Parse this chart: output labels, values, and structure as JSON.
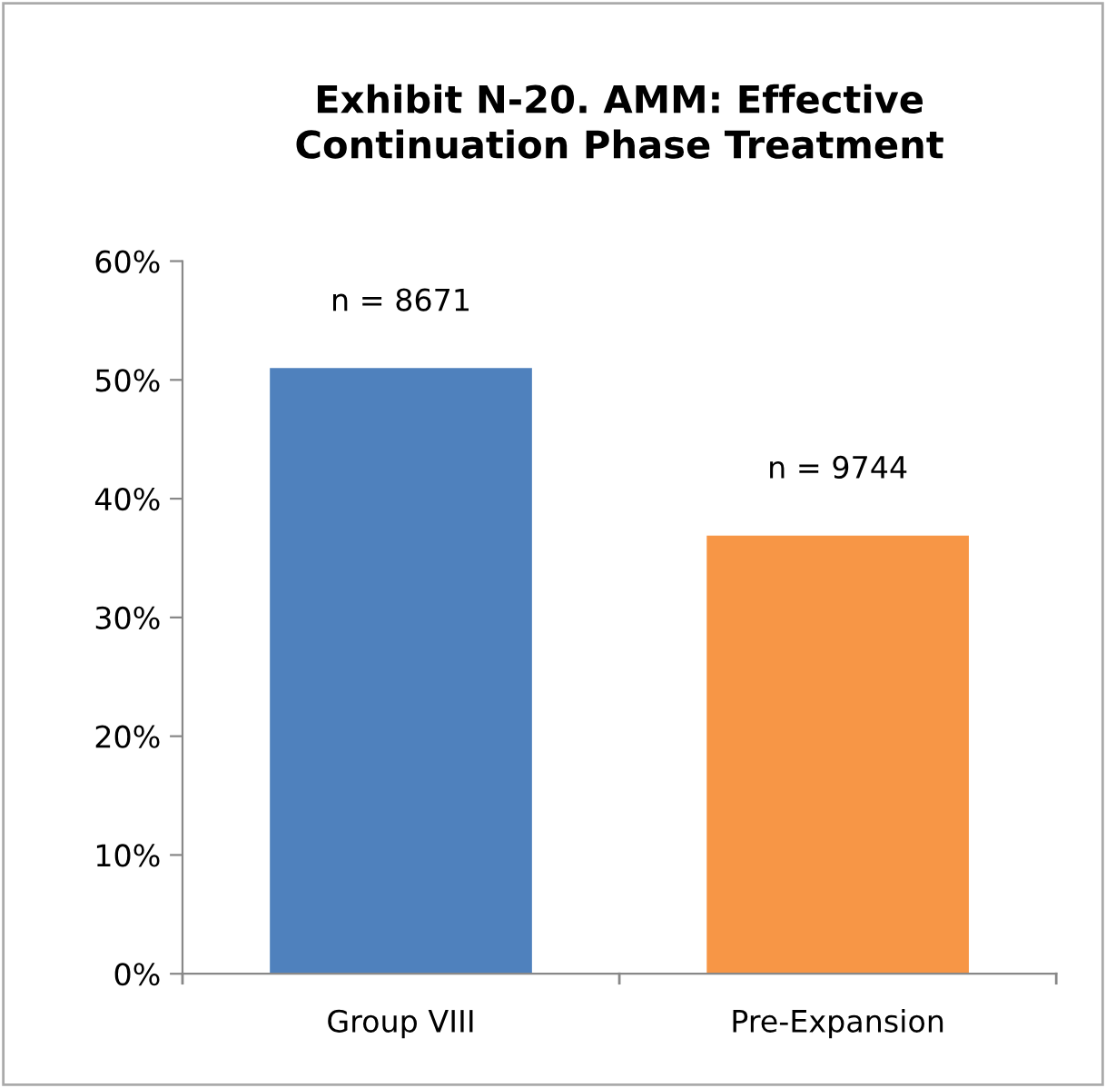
{
  "chart_data": {
    "type": "bar",
    "title": "Exhibit N-20. AMM: Effective\nContinuation Phase Treatment",
    "categories": [
      "Group VIII",
      "Pre-Expansion"
    ],
    "values": [
      51.0,
      36.9
    ],
    "colors": [
      "#4f81bd",
      "#f79646"
    ],
    "ylim": [
      0,
      60
    ],
    "yticks": [
      {
        "value": 0,
        "label": "0%"
      },
      {
        "value": 10,
        "label": "10%"
      },
      {
        "value": 20,
        "label": "20%"
      },
      {
        "value": 30,
        "label": "30%"
      },
      {
        "value": 40,
        "label": "40%"
      },
      {
        "value": 50,
        "label": "50%"
      },
      {
        "value": 60,
        "label": "60%"
      }
    ],
    "annotations": [
      "n = 8671",
      "n = 9744"
    ],
    "grid": false,
    "legend": false
  }
}
